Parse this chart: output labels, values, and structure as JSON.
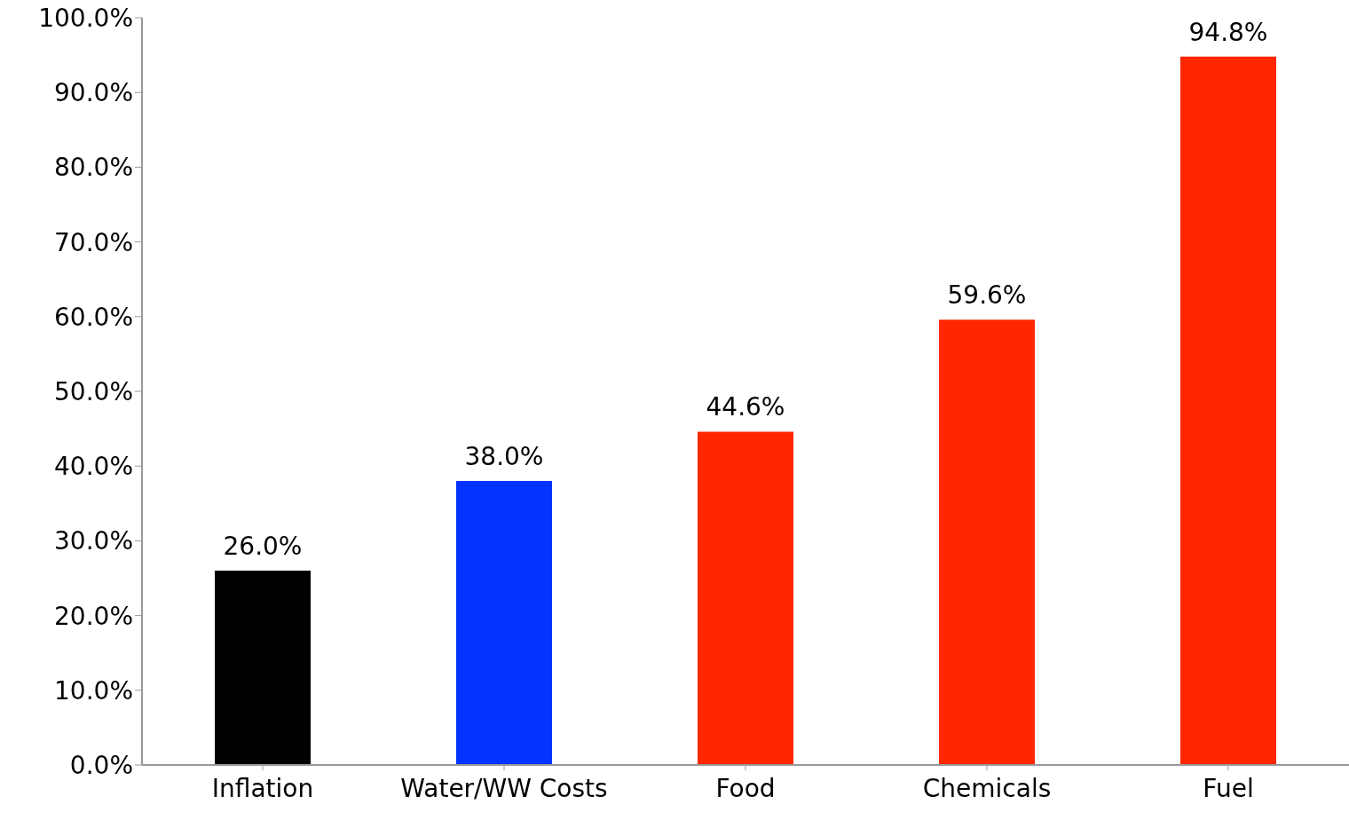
{
  "chart_data": {
    "type": "bar",
    "categories": [
      "Inflation",
      "Water/WW Costs",
      "Food",
      "Chemicals",
      "Fuel"
    ],
    "values": [
      26.0,
      38.0,
      44.6,
      59.6,
      94.8
    ],
    "colors": [
      "#000000",
      "#0433ff",
      "#ff2600",
      "#ff2600",
      "#ff2600"
    ],
    "value_labels": [
      "26.0%",
      "38.0%",
      "44.6%",
      "59.6%",
      "94.8%"
    ],
    "ylim": [
      0,
      100
    ],
    "yticks": [
      {
        "value": 0,
        "label": "0.0%"
      },
      {
        "value": 10,
        "label": "10.0%"
      },
      {
        "value": 20,
        "label": "20.0%"
      },
      {
        "value": 30,
        "label": "30.0%"
      },
      {
        "value": 40,
        "label": "40.0%"
      },
      {
        "value": 50,
        "label": "50.0%"
      },
      {
        "value": 60,
        "label": "60.0%"
      },
      {
        "value": 70,
        "label": "70.0%"
      },
      {
        "value": 80,
        "label": "80.0%"
      },
      {
        "value": 90,
        "label": "90.0%"
      },
      {
        "value": 100,
        "label": "100.0%"
      }
    ],
    "grid": false,
    "legend": false
  }
}
